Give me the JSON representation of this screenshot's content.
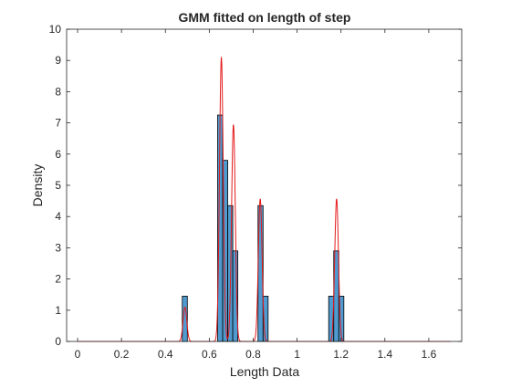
{
  "chart_data": {
    "type": "bar",
    "title": "GMM fitted on length of step",
    "xlabel": "Length Data",
    "ylabel": "Density",
    "xlim": [
      -0.05,
      1.75
    ],
    "ylim": [
      0,
      10
    ],
    "grid": false,
    "legend": "none",
    "x_ticks": [
      "0",
      "0.2",
      "0.4",
      "0.6",
      "0.8",
      "1",
      "1.2",
      "1.4",
      "1.6"
    ],
    "x_tick_values": [
      0,
      0.2,
      0.4,
      0.6,
      0.8,
      1.0,
      1.2,
      1.4,
      1.6
    ],
    "y_ticks": [
      "0",
      "1",
      "2",
      "3",
      "4",
      "5",
      "6",
      "7",
      "8",
      "9",
      "10"
    ],
    "y_tick_values": [
      0,
      1,
      2,
      3,
      4,
      5,
      6,
      7,
      8,
      9,
      10
    ],
    "histogram": {
      "bin_width": 0.023,
      "bin_starts": [
        0.477,
        0.638,
        0.661,
        0.684,
        0.707,
        0.822,
        0.845,
        1.144,
        1.167,
        1.19
      ],
      "values": [
        1.45,
        7.25,
        5.8,
        4.35,
        2.9,
        4.35,
        1.45,
        1.45,
        2.9,
        1.45
      ],
      "fill_color": "#4f9bd0",
      "edge_color": "#000000"
    },
    "series": [
      {
        "type": "line",
        "color": "#e41a1c",
        "x_range": [
          0,
          1.7
        ],
        "components": [
          {
            "mean": 0.489,
            "sigma": 0.0085,
            "peak": 1.1
          },
          {
            "mean": 0.655,
            "sigma": 0.0085,
            "peak": 9.1
          },
          {
            "mean": 0.71,
            "sigma": 0.0085,
            "peak": 6.95
          },
          {
            "mean": 0.832,
            "sigma": 0.0085,
            "peak": 4.57
          },
          {
            "mean": 1.18,
            "sigma": 0.0085,
            "peak": 4.57
          }
        ]
      }
    ]
  }
}
